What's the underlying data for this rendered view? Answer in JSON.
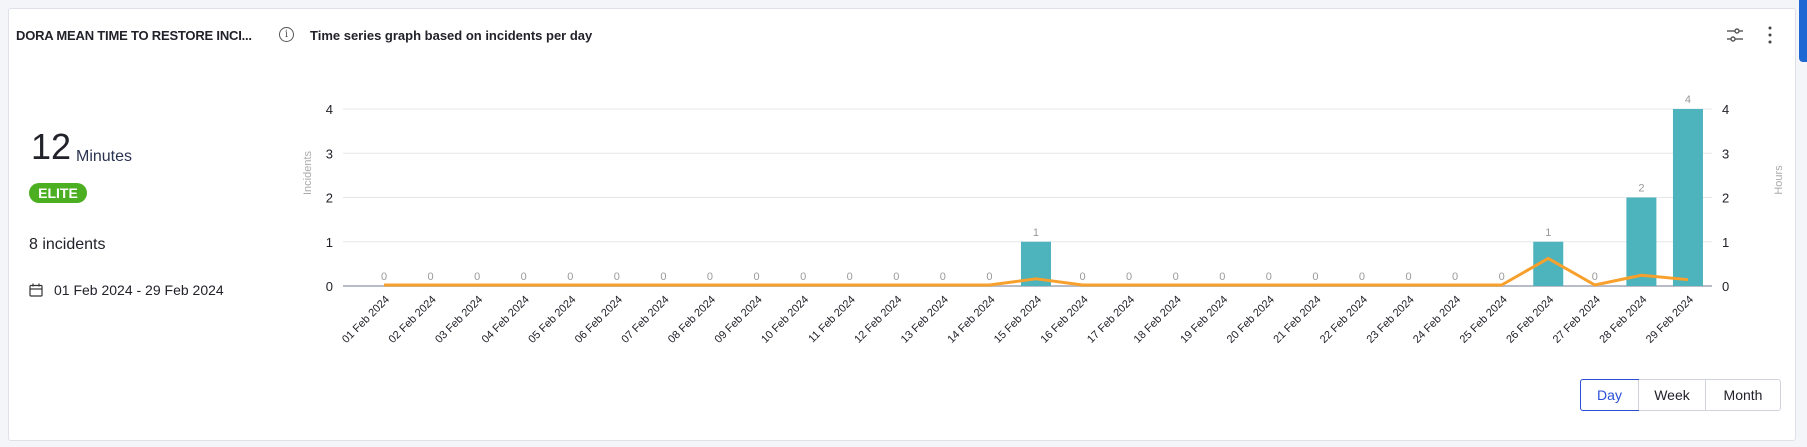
{
  "header": {
    "title": "DORA MEAN TIME TO RESTORE INCI...",
    "subtitle": "Time series graph based on incidents per day",
    "info_icon": "info-icon",
    "settings_icon": "sliders-icon",
    "menu_icon": "kebab-menu-icon"
  },
  "summary": {
    "value": "12",
    "unit": "Minutes",
    "badge": "ELITE",
    "badge_color": "#4caf22",
    "incidents": "8 incidents",
    "date_range": "01 Feb 2024 - 29 Feb 2024",
    "date_icon": "calendar-icon"
  },
  "granularity": {
    "options": [
      "Day",
      "Week",
      "Month"
    ],
    "selected": "Day"
  },
  "chart_data": {
    "type": "bar+line",
    "categories": [
      "01 Feb 2024",
      "02 Feb 2024",
      "03 Feb 2024",
      "04 Feb 2024",
      "05 Feb 2024",
      "06 Feb 2024",
      "07 Feb 2024",
      "08 Feb 2024",
      "09 Feb 2024",
      "10 Feb 2024",
      "11 Feb 2024",
      "12 Feb 2024",
      "13 Feb 2024",
      "14 Feb 2024",
      "15 Feb 2024",
      "16 Feb 2024",
      "17 Feb 2024",
      "18 Feb 2024",
      "19 Feb 2024",
      "20 Feb 2024",
      "21 Feb 2024",
      "22 Feb 2024",
      "23 Feb 2024",
      "24 Feb 2024",
      "25 Feb 2024",
      "26 Feb 2024",
      "27 Feb 2024",
      "28 Feb 2024",
      "29 Feb 2024"
    ],
    "series": [
      {
        "type": "bar",
        "axis": "left",
        "color": "#4db3bd",
        "values": [
          0,
          0,
          0,
          0,
          0,
          0,
          0,
          0,
          0,
          0,
          0,
          0,
          0,
          0,
          1,
          0,
          0,
          0,
          0,
          0,
          0,
          0,
          0,
          0,
          0,
          1,
          0,
          2,
          4
        ]
      },
      {
        "type": "line",
        "axis": "right",
        "color": "#f7a02c",
        "values": [
          0,
          0,
          0,
          0,
          0,
          0,
          0,
          0,
          0,
          0,
          0,
          0,
          0,
          0,
          0.14,
          0,
          0,
          0,
          0,
          0,
          0,
          0,
          0,
          0,
          0,
          0.6,
          0,
          0.22,
          0.12
        ]
      }
    ],
    "ylabel": "Incidents",
    "y2label": "Hours",
    "ylim": [
      0,
      4
    ],
    "y2lim": [
      0,
      4
    ],
    "yticks": [
      "0",
      "1",
      "2",
      "3",
      "4"
    ],
    "y2ticks": [
      "0",
      "1",
      "2",
      "3",
      "4"
    ],
    "grid": true
  }
}
